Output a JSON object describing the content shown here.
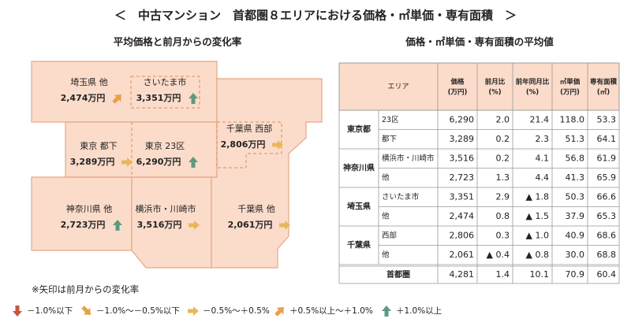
{
  "title": "＜　中古マンション　首都圏８エリアにおける価格・㎡単価・専有面積　＞",
  "map": {
    "title": "平均価格と前月からの変化率",
    "areas": [
      {
        "name": "埼玉県 他",
        "price": "2,474万円",
        "trend": 3
      },
      {
        "name": "さいたま市",
        "price": "3,351万円",
        "trend": 4
      },
      {
        "name": "東京 都下",
        "price": "3,289万円",
        "trend": 2
      },
      {
        "name": "東京 23区",
        "price": "6,290万円",
        "trend": 4
      },
      {
        "name": "千葉県 西部",
        "price": "2,806万円",
        "trend": 2
      },
      {
        "name": "神奈川県 他",
        "price": "2,723万円",
        "trend": 4
      },
      {
        "name": "横浜市・川崎市",
        "price": "3,516万円",
        "trend": 2
      },
      {
        "name": "千葉県 他",
        "price": "2,061万円",
        "trend": 2
      }
    ]
  },
  "table": {
    "title": "価格・㎡単価・専有面積の平均値",
    "area_header": "エリア",
    "columns": [
      [
        "価格",
        "(万円)"
      ],
      [
        "前月比",
        "(%)"
      ],
      [
        "前年同月比",
        "(%)"
      ],
      [
        "㎡単価",
        "(万円)"
      ],
      [
        "専有面積",
        "(㎡)"
      ]
    ],
    "groups": [
      {
        "name": "東京都",
        "rows": [
          {
            "area": "23区",
            "cells": [
              "6,290",
              "2.0",
              "21.4",
              "118.0",
              "53.3"
            ]
          },
          {
            "area": "都下",
            "cells": [
              "3,289",
              "0.2",
              "2.3",
              "51.3",
              "64.1"
            ]
          }
        ]
      },
      {
        "name": "神奈川県",
        "rows": [
          {
            "area": "横浜市・川崎市",
            "cells": [
              "3,516",
              "0.2",
              "4.1",
              "56.8",
              "61.9"
            ]
          },
          {
            "area": "他",
            "cells": [
              "2,723",
              "1.3",
              "4.4",
              "41.3",
              "65.9"
            ]
          }
        ]
      },
      {
        "name": "埼玉県",
        "rows": [
          {
            "area": "さいたま市",
            "cells": [
              "3,351",
              "2.9",
              "▲ 1.8",
              "50.3",
              "66.6"
            ]
          },
          {
            "area": "他",
            "cells": [
              "2,474",
              "0.8",
              "▲ 1.5",
              "37.9",
              "65.3"
            ]
          }
        ]
      },
      {
        "name": "千葉県",
        "rows": [
          {
            "area": "西部",
            "cells": [
              "2,806",
              "0.3",
              "▲ 1.0",
              "40.9",
              "68.6"
            ]
          },
          {
            "area": "他",
            "cells": [
              "2,061",
              "▲ 0.4",
              "▲ 0.8",
              "30.0",
              "68.8"
            ]
          }
        ]
      }
    ],
    "total": {
      "name": "首都圏",
      "cells": [
        "4,281",
        "1.4",
        "10.1",
        "70.9",
        "60.4"
      ]
    }
  },
  "note": "※矢印は前月からの変化率",
  "legend": [
    {
      "label": "－1.0%以下",
      "color": "#c8553d"
    },
    {
      "label": "－1.0%～－0.5%以下",
      "color": "#e3a34a"
    },
    {
      "label": "－0.5%～＋0.5%",
      "color": "#e8b75a"
    },
    {
      "label": "＋0.5%以上～＋1.0%",
      "color": "#e8a04a"
    },
    {
      "label": "＋1.0%以上",
      "color": "#5f9a80"
    }
  ]
}
